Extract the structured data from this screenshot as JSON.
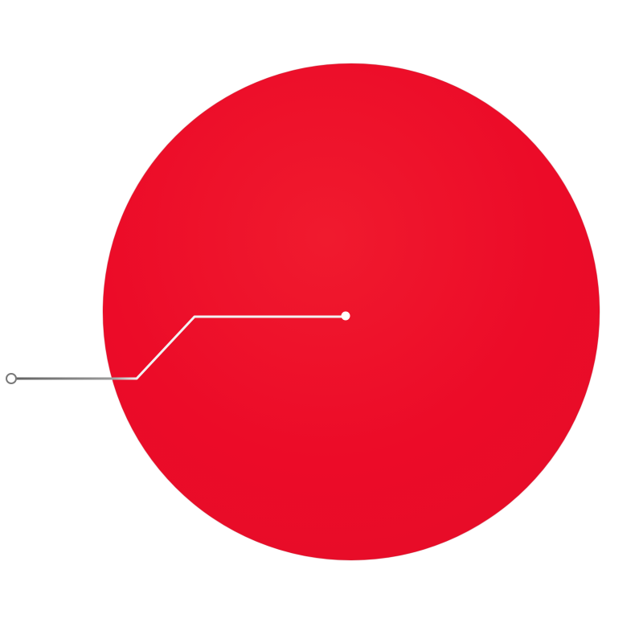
{
  "colors": {
    "background": "#ffffff",
    "disc_fill": "#ec0b28",
    "disc_highlight": "#f01a2e",
    "disc_edge": "#b91c2c",
    "leader_line_light": "#f3f3f3",
    "leader_line_dark": "#6b6b6b",
    "anchor_dot": "#ffffff",
    "end_ring_stroke": "#7a7a7a"
  },
  "icons": {
    "disc": "filled-circle",
    "anchor": "dot-icon",
    "endpoint": "ring-icon"
  }
}
